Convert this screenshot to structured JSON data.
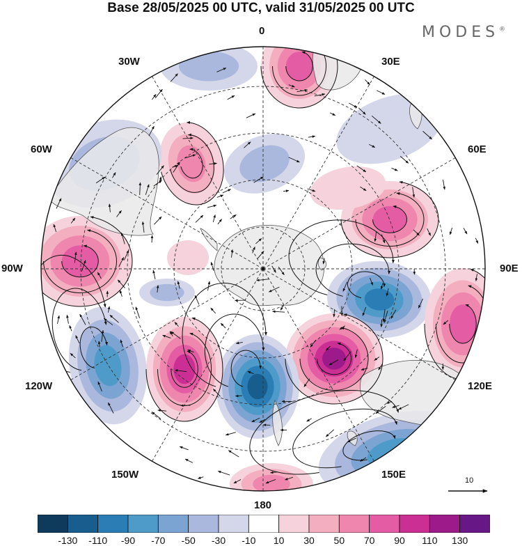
{
  "title": "Base 28/05/2025 00 UTC, valid 31/05/2025 00 UTC",
  "brand": "MODES",
  "brand_mark": "®",
  "longitude_labels": {
    "lon_0": "0",
    "lon_30e": "30E",
    "lon_60e": "60E",
    "lon_90e": "90E",
    "lon_120e": "120E",
    "lon_150e": "150E",
    "lon_180": "180",
    "lon_150w": "150W",
    "lon_120w": "120W",
    "lon_90w": "90W",
    "lon_60w": "60W",
    "lon_30w": "30W"
  },
  "reference_vector": {
    "label": "10"
  },
  "projection": "south-polar-stereographic",
  "colorbar": {
    "colors": [
      "#0e3b5c",
      "#175e8e",
      "#2a7db5",
      "#4e9bc9",
      "#7ca4d2",
      "#a9b8dc",
      "#d4d6ea",
      "#ffffff",
      "#f6d3dc",
      "#f3aebf",
      "#ee86ad",
      "#e45ca3",
      "#cb2f93",
      "#9d1a8a",
      "#681786"
    ],
    "ticks": [
      "-130",
      "-110",
      "-90",
      "-70",
      "-50",
      "-30",
      "-10",
      "10",
      "30",
      "50",
      "70",
      "90",
      "110",
      "130"
    ]
  },
  "colors": {
    "land": "#e9e9ea",
    "coast": "#555555",
    "grid": "#333333",
    "arrow": "#111111"
  }
}
